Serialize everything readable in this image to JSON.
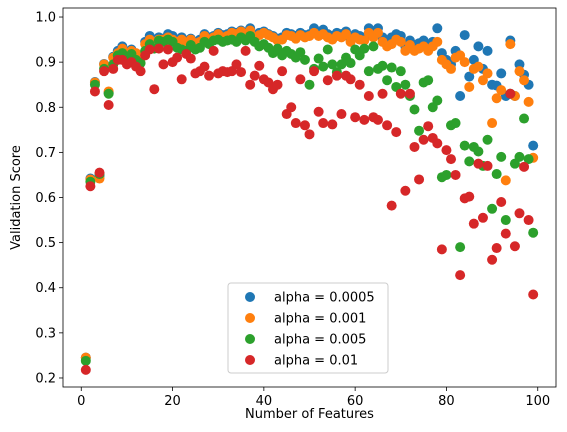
{
  "chart_data": {
    "type": "scatter",
    "title": "",
    "xlabel": "Number of Features",
    "ylabel": "Validation Score",
    "xlim": [
      -4,
      104
    ],
    "ylim": [
      0.18,
      1.02
    ],
    "xticks": [
      0,
      20,
      40,
      60,
      80,
      100
    ],
    "yticks": [
      0.2,
      0.3,
      0.4,
      0.5,
      0.6,
      0.7,
      0.8,
      0.9,
      1.0
    ],
    "grid": false,
    "legend_position": "lower-center",
    "x": [
      1,
      2,
      3,
      4,
      5,
      6,
      7,
      8,
      9,
      10,
      11,
      12,
      13,
      14,
      15,
      16,
      17,
      18,
      19,
      20,
      21,
      22,
      23,
      24,
      25,
      26,
      27,
      28,
      29,
      30,
      31,
      32,
      33,
      34,
      35,
      36,
      37,
      38,
      39,
      40,
      41,
      42,
      43,
      44,
      45,
      46,
      47,
      48,
      49,
      50,
      51,
      52,
      53,
      54,
      55,
      56,
      57,
      58,
      59,
      60,
      61,
      62,
      63,
      64,
      65,
      66,
      67,
      68,
      69,
      70,
      71,
      72,
      73,
      74,
      75,
      76,
      77,
      78,
      79,
      80,
      81,
      82,
      83,
      84,
      85,
      86,
      87,
      88,
      89,
      90,
      91,
      92,
      93,
      94,
      95,
      96,
      97,
      98,
      99
    ],
    "series": [
      {
        "name": "alpha = 0.0005",
        "color": "#1f77b4",
        "values": [
          0.245,
          0.642,
          0.856,
          0.648,
          0.896,
          0.832,
          0.912,
          0.925,
          0.935,
          0.922,
          0.928,
          0.918,
          0.915,
          0.945,
          0.958,
          0.945,
          0.955,
          0.952,
          0.962,
          0.958,
          0.95,
          0.955,
          0.945,
          0.952,
          0.945,
          0.95,
          0.962,
          0.955,
          0.958,
          0.965,
          0.96,
          0.962,
          0.968,
          0.965,
          0.97,
          0.965,
          0.975,
          0.96,
          0.965,
          0.968,
          0.962,
          0.958,
          0.952,
          0.955,
          0.965,
          0.962,
          0.958,
          0.965,
          0.96,
          0.962,
          0.975,
          0.965,
          0.972,
          0.962,
          0.958,
          0.965,
          0.962,
          0.968,
          0.95,
          0.962,
          0.958,
          0.955,
          0.975,
          0.962,
          0.975,
          0.955,
          0.945,
          0.955,
          0.962,
          0.958,
          0.935,
          0.948,
          0.938,
          0.942,
          0.948,
          0.935,
          0.945,
          0.975,
          0.92,
          0.905,
          0.895,
          0.925,
          0.825,
          0.96,
          0.868,
          0.905,
          0.935,
          0.885,
          0.925,
          0.85,
          0.848,
          0.875,
          0.825,
          0.948,
          0.825,
          0.895,
          0.872,
          0.85,
          0.715
        ]
      },
      {
        "name": "alpha = 0.001",
        "color": "#ff7f0e",
        "values": [
          0.245,
          0.64,
          0.855,
          0.642,
          0.895,
          0.835,
          0.91,
          0.92,
          0.93,
          0.915,
          0.925,
          0.92,
          0.91,
          0.94,
          0.95,
          0.94,
          0.95,
          0.95,
          0.955,
          0.95,
          0.945,
          0.95,
          0.94,
          0.95,
          0.942,
          0.945,
          0.958,
          0.95,
          0.955,
          0.962,
          0.955,
          0.958,
          0.965,
          0.962,
          0.968,
          0.962,
          0.97,
          0.955,
          0.96,
          0.965,
          0.96,
          0.955,
          0.948,
          0.95,
          0.96,
          0.958,
          0.952,
          0.96,
          0.955,
          0.958,
          0.965,
          0.958,
          0.962,
          0.955,
          0.95,
          0.958,
          0.955,
          0.962,
          0.945,
          0.955,
          0.95,
          0.948,
          0.965,
          0.955,
          0.965,
          0.945,
          0.935,
          0.94,
          0.95,
          0.945,
          0.925,
          0.938,
          0.925,
          0.93,
          0.935,
          0.925,
          0.935,
          0.945,
          0.905,
          0.895,
          0.885,
          0.91,
          0.915,
          0.9,
          0.845,
          0.885,
          0.89,
          0.86,
          0.875,
          0.765,
          0.82,
          0.838,
          0.638,
          0.94,
          0.825,
          0.88,
          0.86,
          0.812,
          0.688
        ]
      },
      {
        "name": "alpha = 0.005",
        "color": "#2ca02c",
        "values": [
          0.238,
          0.635,
          0.85,
          0.652,
          0.885,
          0.83,
          0.895,
          0.915,
          0.92,
          0.91,
          0.918,
          0.905,
          0.898,
          0.925,
          0.94,
          0.93,
          0.948,
          0.945,
          0.95,
          0.945,
          0.932,
          0.928,
          0.925,
          0.938,
          0.928,
          0.932,
          0.945,
          0.94,
          0.948,
          0.95,
          0.945,
          0.948,
          0.95,
          0.945,
          0.955,
          0.948,
          0.958,
          0.945,
          0.935,
          0.94,
          0.932,
          0.92,
          0.93,
          0.915,
          0.925,
          0.918,
          0.91,
          0.922,
          0.905,
          0.85,
          0.885,
          0.908,
          0.89,
          0.928,
          0.895,
          0.878,
          0.895,
          0.91,
          0.898,
          0.928,
          0.915,
          0.93,
          0.88,
          0.935,
          0.885,
          0.892,
          0.86,
          0.888,
          0.845,
          0.88,
          0.85,
          0.825,
          0.795,
          0.748,
          0.855,
          0.86,
          0.8,
          0.815,
          0.645,
          0.65,
          0.76,
          0.765,
          0.49,
          0.715,
          0.68,
          0.712,
          0.702,
          0.67,
          0.728,
          0.575,
          0.652,
          0.69,
          0.55,
          0.83,
          0.675,
          0.69,
          0.775,
          0.685,
          0.522
        ]
      },
      {
        "name": "alpha = 0.01",
        "color": "#d62728",
        "values": [
          0.218,
          0.625,
          0.835,
          0.655,
          0.88,
          0.805,
          0.885,
          0.905,
          0.905,
          0.895,
          0.9,
          0.89,
          0.88,
          0.915,
          0.928,
          0.84,
          0.93,
          0.895,
          0.928,
          0.9,
          0.91,
          0.862,
          0.918,
          0.908,
          0.875,
          0.88,
          0.89,
          0.87,
          0.925,
          0.875,
          0.88,
          0.878,
          0.88,
          0.895,
          0.878,
          0.925,
          0.85,
          0.87,
          0.892,
          0.862,
          0.855,
          0.84,
          0.85,
          0.88,
          0.785,
          0.8,
          0.765,
          0.862,
          0.76,
          0.74,
          0.88,
          0.79,
          0.765,
          0.86,
          0.762,
          0.87,
          0.785,
          0.87,
          0.862,
          0.778,
          0.85,
          0.772,
          0.825,
          0.778,
          0.772,
          0.83,
          0.76,
          0.582,
          0.745,
          0.83,
          0.615,
          0.83,
          0.712,
          0.64,
          0.728,
          0.758,
          0.732,
          0.72,
          0.485,
          0.705,
          0.685,
          0.65,
          0.428,
          0.598,
          0.602,
          0.542,
          0.675,
          0.555,
          0.67,
          0.462,
          0.488,
          0.59,
          0.52,
          0.83,
          0.492,
          0.565,
          0.668,
          0.55,
          0.385
        ]
      }
    ]
  }
}
